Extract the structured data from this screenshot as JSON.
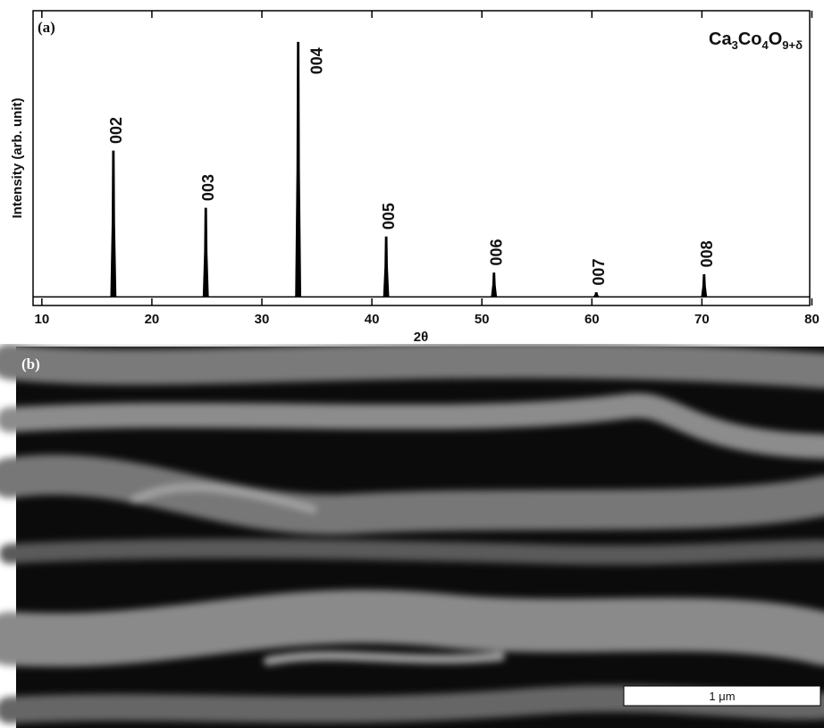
{
  "chart_data": {
    "type": "peaks",
    "panel_label": "(a)",
    "formula": [
      "Ca",
      "3",
      "Co",
      "4",
      "O",
      "9+δ"
    ],
    "x_label": "2θ",
    "y_label": "Intensity (arb. unit)",
    "x": [
      16.5,
      24.9,
      33.3,
      41.3,
      51.1,
      60.4,
      70.2
    ],
    "values": [
      51,
      31,
      89,
      21,
      8.4,
      1.5,
      7.8
    ],
    "value_labels": [
      "002",
      "003",
      "004",
      "005",
      "006",
      "007",
      "008"
    ],
    "color": "#000000",
    "xlim": [
      9.2,
      79.8
    ],
    "xticks": [
      10,
      20,
      30,
      40,
      50,
      60,
      70,
      80
    ],
    "ylim": [
      -3,
      100
    ]
  },
  "image": {
    "panel_label": "(b)",
    "scale_bar": "1 μm"
  }
}
